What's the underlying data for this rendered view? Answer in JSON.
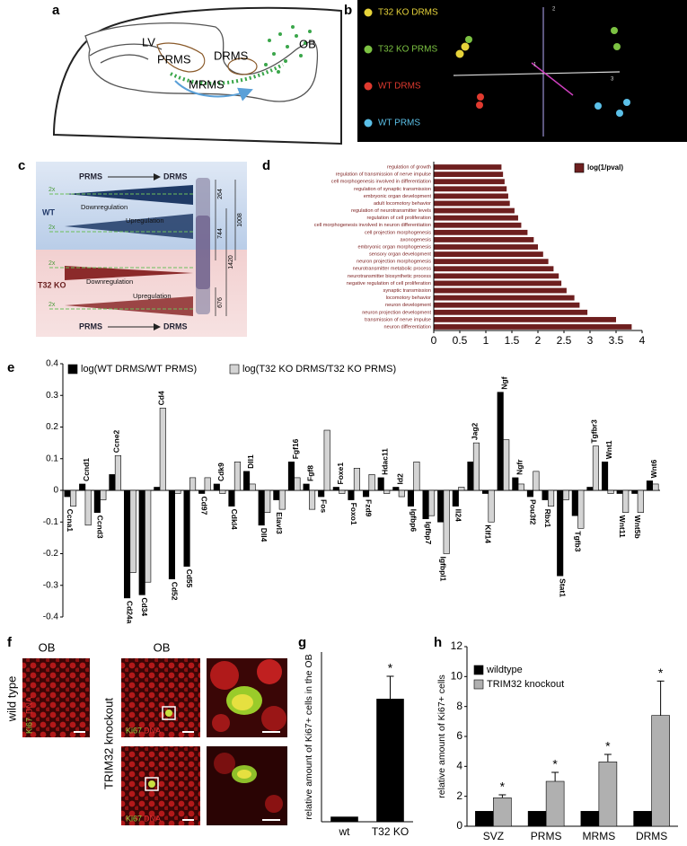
{
  "panel_labels": [
    "a",
    "b",
    "c",
    "d",
    "e",
    "f",
    "g",
    "h"
  ],
  "diagram_a": {
    "labels": [
      "LV",
      "PRMS",
      "DRMS",
      "MRMS",
      "OB"
    ]
  },
  "diagram_b": {
    "legend": [
      {
        "name": "T32 KO DRMS",
        "color": "#e6d33a"
      },
      {
        "name": "T32 KO PRMS",
        "color": "#7cc242"
      },
      {
        "name": "WT DRMS",
        "color": "#e03a2f"
      },
      {
        "name": "WT PRMS",
        "color": "#5bc0e8"
      }
    ],
    "axis_labels": [
      "2",
      "1",
      "3"
    ]
  },
  "diagram_c": {
    "from": "PRMS",
    "to": "DRMS",
    "groups": [
      "WT",
      "T32 KO"
    ],
    "fold": "2x",
    "down": "Downregulation",
    "up": "Upregulation",
    "counts": [
      "264",
      "744",
      "1008",
      "1420",
      "676"
    ]
  },
  "micrographs_f": {
    "region": "OB",
    "genotypes": [
      "wild type",
      "TRIM32 knockout"
    ],
    "stains": [
      "Ki67",
      "DNA"
    ]
  },
  "chart_data": [
    {
      "type": "barh",
      "categories": [
        "regulation of growth",
        "regulation of transmission of nerve impulse",
        "cell morphogenesis involved in differentiation",
        "regulation of synaptic transmission",
        "embryonic organ development",
        "adult locomotory behavior",
        "regulation of neurotransmitter levels",
        "regulation of cell proliferation",
        "cell morphogenesis involved in neuron differentiation",
        "cell projection morphogenesis",
        "axonogenesis",
        "embryonic organ morphogenesis",
        "sensory organ development",
        "neuron projection morphogenesis",
        "neurotransmitter metabolic process",
        "neurotransmitter biosynthetic process",
        "negative regulation of cell proliferation",
        "synaptic transmission",
        "locomotory behavior",
        "neuron development",
        "neuron projection development",
        "transmission of nerve impulse",
        "neuron differentiation"
      ],
      "series": [
        {
          "name": "log(1/pval)",
          "color": "#6e1f1f",
          "values": [
            1.3,
            1.33,
            1.36,
            1.4,
            1.43,
            1.46,
            1.55,
            1.62,
            1.68,
            1.8,
            1.92,
            2.0,
            2.1,
            2.2,
            2.3,
            2.4,
            2.45,
            2.55,
            2.7,
            2.8,
            2.95,
            3.5,
            3.8
          ]
        }
      ],
      "xlim": [
        0,
        4
      ],
      "xticks": [
        0,
        0.5,
        1,
        1.5,
        2,
        2.5,
        3,
        3.5,
        4
      ]
    },
    {
      "type": "bar",
      "categories": [
        "Ccna1",
        "Ccnd1",
        "Ccnd3",
        "Ccne2",
        "Cd24a",
        "Cd34",
        "Cd4",
        "Cd52",
        "Cd55",
        "Cd97",
        "Cdk9",
        "Cdkl4",
        "Dll1",
        "Dll4",
        "Elavl3",
        "Fgf16",
        "Fgf8",
        "Fos",
        "Foxe1",
        "Foxo1",
        "Fzd9",
        "Hdac11",
        "Id2",
        "Igfbp6",
        "Igfbp7",
        "Igfbpl1",
        "Il24",
        "Jag2",
        "Klf14",
        "Ngf",
        "Ngfr",
        "Pou3f2",
        "Rbx1",
        "Stat1",
        "Tgfb3",
        "Tgfbr3",
        "Wnt1",
        "Wnt11",
        "Wnt5b",
        "Wnt6"
      ],
      "series": [
        {
          "name": "log(WT DRMS/WT PRMS)",
          "color": "#000000",
          "values": [
            -0.02,
            0.02,
            -0.07,
            0.05,
            -0.34,
            -0.33,
            0.01,
            -0.28,
            -0.24,
            -0.01,
            0.02,
            -0.05,
            0.06,
            -0.11,
            -0.03,
            0.09,
            0.02,
            -0.02,
            0.01,
            -0.03,
            -0.02,
            0.04,
            0.01,
            -0.05,
            -0.09,
            -0.1,
            -0.05,
            0.09,
            -0.01,
            0.31,
            0.04,
            -0.02,
            -0.03,
            -0.27,
            -0.08,
            0.01,
            0.09,
            -0.01,
            -0.01,
            0.03
          ]
        },
        {
          "name": "log(T32 KO DRMS/T32 KO PRMS)",
          "color": "#d4d4d4",
          "values": [
            -0.05,
            -0.11,
            -0.03,
            0.11,
            -0.26,
            -0.29,
            0.26,
            -0.01,
            0.04,
            0.04,
            -0.01,
            0.09,
            0.02,
            -0.07,
            -0.06,
            0.04,
            -0.06,
            0.19,
            -0.01,
            0.07,
            0.05,
            -0.01,
            -0.02,
            0.09,
            -0.08,
            -0.2,
            0.01,
            0.15,
            -0.1,
            0.16,
            0.02,
            0.06,
            -0.05,
            -0.03,
            -0.12,
            0.14,
            -0.01,
            -0.07,
            -0.07,
            0.02
          ]
        }
      ],
      "ylim": [
        -0.4,
        0.4
      ],
      "yticks": [
        -0.4,
        -0.3,
        -0.2,
        -0.1,
        0,
        0.1,
        0.2,
        0.3,
        0.4
      ]
    },
    {
      "type": "bar",
      "categories": [
        "wt",
        "T32 KO"
      ],
      "y_label": "relative amount of Ki67+ cells in the OB",
      "series": [
        {
          "color": "#000000",
          "values": [
            1,
            25.3
          ],
          "errors": [
            null,
            4.7
          ],
          "markers": [
            null,
            "*"
          ]
        }
      ],
      "ylim": [
        0,
        35
      ]
    },
    {
      "type": "bar",
      "categories": [
        "SVZ",
        "PRMS",
        "MRMS",
        "DRMS"
      ],
      "y_label": "relative amount of Ki67+ cells",
      "series": [
        {
          "name": "wildtype",
          "color": "#000000",
          "values": [
            1,
            1,
            1,
            1
          ]
        },
        {
          "name": "TRIM32 knockout",
          "color": "#b0b0b0",
          "values": [
            1.9,
            3.0,
            4.3,
            7.4
          ],
          "errors": [
            0.2,
            0.6,
            0.5,
            2.3
          ],
          "markers": [
            "*",
            "*",
            "*",
            "*"
          ]
        }
      ],
      "ylim": [
        0,
        12
      ],
      "yticks": [
        0,
        2,
        4,
        6,
        8,
        10,
        12
      ]
    }
  ]
}
